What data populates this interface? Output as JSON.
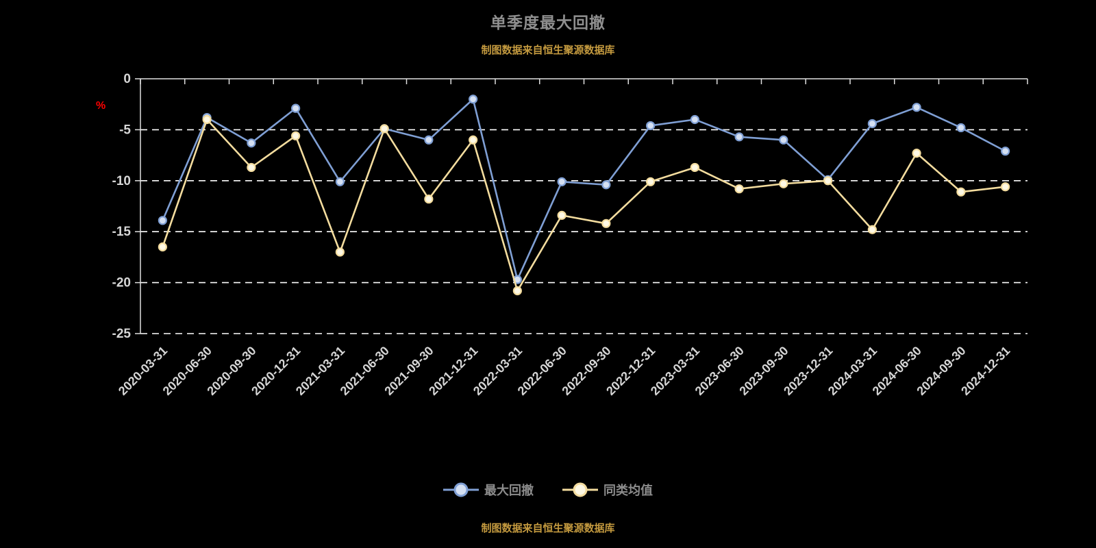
{
  "page": {
    "title": "单季度最大回撤",
    "source_note": "制图数据来自恒生聚源数据库"
  },
  "chart_data": {
    "type": "line",
    "title": "单季度最大回撤",
    "source_note": "制图数据来自恒生聚源数据库",
    "xlabel": "",
    "ylabel": "%",
    "ylim": [
      -25,
      0
    ],
    "yticks": [
      0,
      -5,
      -10,
      -15,
      -20,
      -25
    ],
    "grid": true,
    "grid_style": "dashed",
    "legend_position": "bottom",
    "categories": [
      "2020-03-31",
      "2020-06-30",
      "2020-09-30",
      "2020-12-31",
      "2021-03-31",
      "2021-06-30",
      "2021-09-30",
      "2021-12-31",
      "2022-03-31",
      "2022-06-30",
      "2022-09-30",
      "2022-12-31",
      "2023-03-31",
      "2023-06-30",
      "2023-09-30",
      "2023-12-31",
      "2024-03-31",
      "2024-06-30",
      "2024-09-30",
      "2024-12-31"
    ],
    "series": [
      {
        "name": "最大回撤",
        "color": "#7f9fd4",
        "marker_fill": "#d5e0f2",
        "values": [
          -13.9,
          -3.8,
          -6.3,
          -2.9,
          -10.1,
          -4.9,
          -6.0,
          -2.0,
          -19.7,
          -10.1,
          -10.4,
          -4.6,
          -4.0,
          -5.7,
          -6.0,
          -9.9,
          -4.4,
          -2.8,
          -4.8,
          -7.1
        ]
      },
      {
        "name": "同类均值",
        "color": "#f3dc9e",
        "marker_fill": "#fdf8e4",
        "values": [
          -16.5,
          -4.0,
          -8.7,
          -5.6,
          -17.0,
          -4.9,
          -11.8,
          -6.0,
          -20.8,
          -13.4,
          -14.2,
          -10.1,
          -8.7,
          -10.8,
          -10.3,
          -10.0,
          -14.8,
          -7.3,
          -11.1,
          -10.6
        ]
      }
    ]
  },
  "colors": {
    "background": "#000000",
    "title": "#8f8f8f",
    "source_note": "#c49a3f",
    "axis_line": "#e0e0e0",
    "tick_label": "#d6d6d6",
    "gridline": "#ffffff",
    "ylabel_color": "#ff0000",
    "legend_text": "#8c8c8c"
  }
}
